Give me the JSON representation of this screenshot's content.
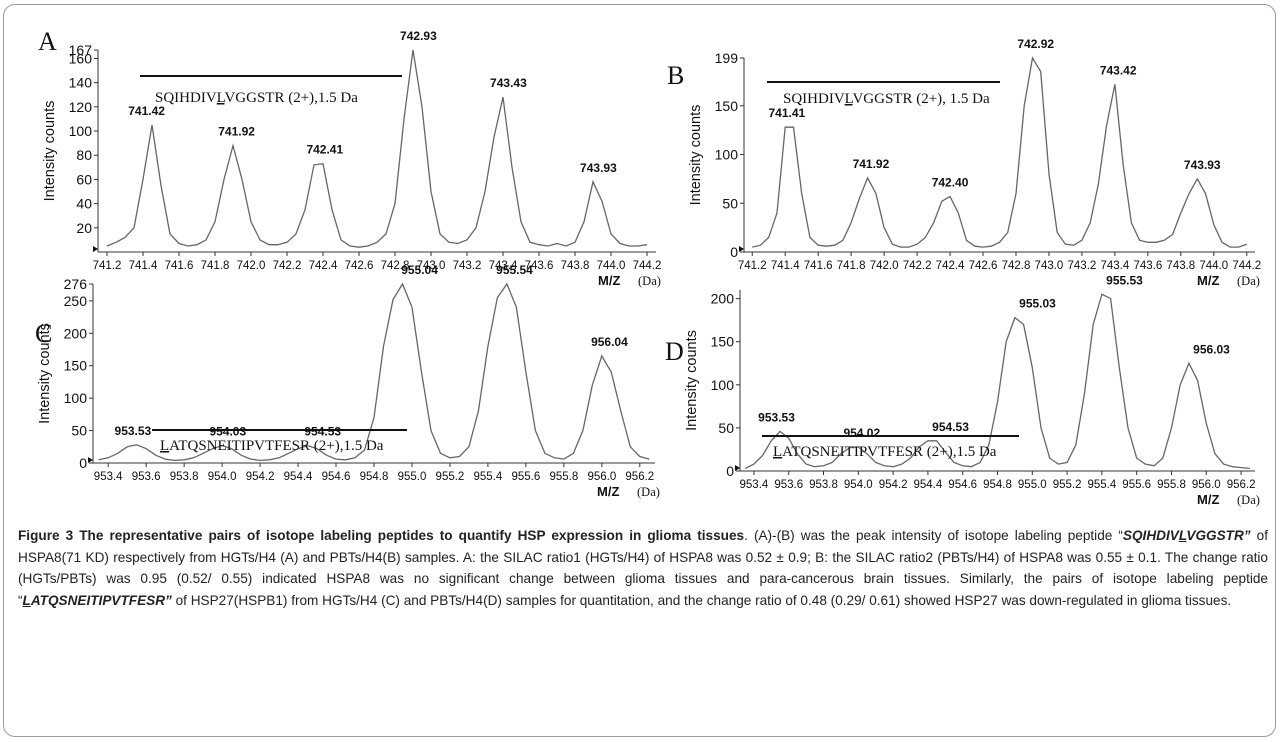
{
  "chart_data": [
    {
      "type": "line",
      "panel_label": "A",
      "x": [
        741.2,
        741.25,
        741.3,
        741.35,
        741.4,
        741.45,
        741.5,
        741.55,
        741.6,
        741.65,
        741.7,
        741.75,
        741.8,
        741.85,
        741.9,
        741.95,
        742.0,
        742.05,
        742.1,
        742.15,
        742.2,
        742.25,
        742.3,
        742.35,
        742.4,
        742.45,
        742.5,
        742.55,
        742.6,
        742.65,
        742.7,
        742.75,
        742.8,
        742.85,
        742.9,
        742.95,
        743.0,
        743.05,
        743.1,
        743.15,
        743.2,
        743.25,
        743.3,
        743.35,
        743.4,
        743.45,
        743.5,
        743.55,
        743.6,
        743.65,
        743.7,
        743.75,
        743.8,
        743.85,
        743.9,
        743.95,
        744.0,
        744.05,
        744.1,
        744.15,
        744.2
      ],
      "series": [
        {
          "values": [
            5,
            8,
            12,
            20,
            60,
            105,
            55,
            15,
            7,
            5,
            6,
            10,
            25,
            60,
            88,
            60,
            25,
            10,
            6,
            6,
            8,
            15,
            35,
            72,
            73,
            35,
            10,
            5,
            4,
            5,
            8,
            15,
            40,
            110,
            167,
            120,
            50,
            15,
            8,
            7,
            10,
            20,
            50,
            95,
            128,
            70,
            25,
            8,
            6,
            5,
            7,
            5,
            8,
            25,
            58,
            42,
            15,
            7,
            5,
            5,
            6
          ]
        }
      ],
      "peak_labels": [
        {
          "x": 741.42,
          "y": 105,
          "label": "741.42"
        },
        {
          "x": 741.92,
          "y": 88,
          "label": "741.92"
        },
        {
          "x": 742.41,
          "y": 73,
          "label": "742.41"
        },
        {
          "x": 742.93,
          "y": 167,
          "label": "742.93"
        },
        {
          "x": 743.43,
          "y": 128,
          "label": "743.43"
        },
        {
          "x": 743.93,
          "y": 58,
          "label": "743.93"
        }
      ],
      "annotation": "SQIHDIVLVGGSTR (2+),1.5 Da",
      "annotation_underline_char": "L",
      "xticks": [
        "741.2",
        "741.4",
        "741.6",
        "741.8",
        "742.0",
        "742.2",
        "742.4",
        "742.6",
        "742.8",
        "743.0",
        "743.2",
        "743.4",
        "743.6",
        "743.8",
        "744.0",
        "744.2"
      ],
      "yticks": [
        "20",
        "40",
        "60",
        "80",
        "100",
        "120",
        "140",
        "160",
        "167"
      ],
      "xlim": [
        741.15,
        744.25
      ],
      "ylim": [
        0,
        167
      ],
      "xlabel": "M/Z",
      "xlabel_unit": "(Da)",
      "ylabel": "Intensity counts"
    },
    {
      "type": "line",
      "panel_label": "B",
      "x": [
        741.2,
        741.25,
        741.3,
        741.35,
        741.4,
        741.45,
        741.5,
        741.55,
        741.6,
        741.65,
        741.7,
        741.75,
        741.8,
        741.85,
        741.9,
        741.95,
        742.0,
        742.05,
        742.1,
        742.15,
        742.2,
        742.25,
        742.3,
        742.35,
        742.4,
        742.45,
        742.5,
        742.55,
        742.6,
        742.65,
        742.7,
        742.75,
        742.8,
        742.85,
        742.9,
        742.95,
        743.0,
        743.05,
        743.1,
        743.15,
        743.2,
        743.25,
        743.3,
        743.35,
        743.4,
        743.45,
        743.5,
        743.55,
        743.6,
        743.65,
        743.7,
        743.75,
        743.8,
        743.85,
        743.9,
        743.95,
        744.0,
        744.05,
        744.1,
        744.15,
        744.2
      ],
      "series": [
        {
          "values": [
            5,
            7,
            15,
            40,
            128,
            128,
            60,
            15,
            7,
            6,
            7,
            12,
            30,
            55,
            76,
            60,
            25,
            8,
            5,
            5,
            8,
            15,
            30,
            52,
            57,
            40,
            12,
            6,
            5,
            6,
            10,
            20,
            60,
            150,
            199,
            185,
            80,
            20,
            8,
            7,
            12,
            30,
            70,
            130,
            172,
            90,
            30,
            12,
            10,
            10,
            12,
            18,
            40,
            60,
            75,
            60,
            28,
            10,
            5,
            5,
            8
          ]
        }
      ],
      "peak_labels": [
        {
          "x": 741.41,
          "y": 128,
          "label": "741.41"
        },
        {
          "x": 741.92,
          "y": 76,
          "label": "741.92"
        },
        {
          "x": 742.4,
          "y": 57,
          "label": "742.40"
        },
        {
          "x": 742.92,
          "y": 199,
          "label": "742.92"
        },
        {
          "x": 743.42,
          "y": 172,
          "label": "743.42"
        },
        {
          "x": 743.93,
          "y": 75,
          "label": "743.93"
        }
      ],
      "annotation": "SQIHDIVLVGGSTR (2+), 1.5 Da",
      "annotation_underline_char": "L",
      "xticks": [
        "741.2",
        "741.4",
        "741.6",
        "741.8",
        "742.0",
        "742.2",
        "742.4",
        "742.6",
        "742.8",
        "743.0",
        "743.2",
        "743.4",
        "743.6",
        "743.8",
        "744.0",
        "744.2"
      ],
      "yticks": [
        "0",
        "50",
        "100",
        "150",
        "199"
      ],
      "xlim": [
        741.15,
        744.25
      ],
      "ylim": [
        0,
        199
      ],
      "xlabel": "M/Z",
      "xlabel_unit": "(Da)",
      "ylabel": "Intensity counts"
    },
    {
      "type": "line",
      "panel_label": "C",
      "x": [
        953.35,
        953.4,
        953.45,
        953.5,
        953.55,
        953.6,
        953.65,
        953.7,
        953.75,
        953.8,
        953.85,
        953.9,
        953.95,
        954.0,
        954.05,
        954.1,
        954.15,
        954.2,
        954.25,
        954.3,
        954.35,
        954.4,
        954.45,
        954.5,
        954.55,
        954.6,
        954.65,
        954.7,
        954.75,
        954.8,
        954.85,
        954.9,
        954.95,
        955.0,
        955.05,
        955.1,
        955.15,
        955.2,
        955.25,
        955.3,
        955.35,
        955.4,
        955.45,
        955.5,
        955.55,
        955.6,
        955.65,
        955.7,
        955.75,
        955.8,
        955.85,
        955.9,
        955.95,
        956.0,
        956.05,
        956.1,
        956.15,
        956.2,
        956.25
      ],
      "series": [
        {
          "values": [
            5,
            8,
            15,
            25,
            28,
            22,
            12,
            6,
            4,
            5,
            8,
            15,
            22,
            27,
            22,
            12,
            6,
            4,
            5,
            8,
            15,
            22,
            27,
            22,
            12,
            6,
            5,
            8,
            20,
            70,
            180,
            252,
            276,
            240,
            140,
            50,
            15,
            8,
            10,
            25,
            80,
            180,
            255,
            276,
            240,
            140,
            50,
            15,
            8,
            6,
            15,
            50,
            120,
            165,
            140,
            80,
            25,
            10,
            6
          ]
        }
      ],
      "peak_labels": [
        {
          "x": 953.53,
          "y": 28,
          "label": "953.53"
        },
        {
          "x": 954.03,
          "y": 27,
          "label": "954.03"
        },
        {
          "x": 954.53,
          "y": 27,
          "label": "954.53"
        },
        {
          "x": 955.04,
          "y": 276,
          "label": "955.04"
        },
        {
          "x": 955.54,
          "y": 276,
          "label": "955.54"
        },
        {
          "x": 956.04,
          "y": 165,
          "label": "956.04"
        }
      ],
      "annotation": "LATQSNEITIPVTFESR (2+),1.5 Da",
      "annotation_underline_char": "L",
      "xticks": [
        "953.4",
        "953.6",
        "953.8",
        "954.0",
        "954.2",
        "954.4",
        "954.6",
        "954.8",
        "955.0",
        "955.2",
        "955.4",
        "955.6",
        "955.8",
        "956.0",
        "956.2"
      ],
      "yticks": [
        "0",
        "50",
        "100",
        "150",
        "200",
        "250",
        "276"
      ],
      "xlim": [
        953.32,
        956.28
      ],
      "ylim": [
        0,
        276
      ],
      "xlabel": "M/Z",
      "xlabel_unit": "(Da)",
      "ylabel": "Intensity counts"
    },
    {
      "type": "line",
      "panel_label": "D",
      "x": [
        953.35,
        953.4,
        953.45,
        953.5,
        953.55,
        953.6,
        953.65,
        953.7,
        953.75,
        953.8,
        953.85,
        953.9,
        953.95,
        954.0,
        954.05,
        954.1,
        954.15,
        954.2,
        954.25,
        954.3,
        954.35,
        954.4,
        954.45,
        954.5,
        954.55,
        954.6,
        954.65,
        954.7,
        954.75,
        954.8,
        954.85,
        954.9,
        954.95,
        955.0,
        955.05,
        955.1,
        955.15,
        955.2,
        955.25,
        955.3,
        955.35,
        955.4,
        955.45,
        955.5,
        955.55,
        955.6,
        955.65,
        955.7,
        955.75,
        955.8,
        955.85,
        955.9,
        955.95,
        956.0,
        956.05,
        956.1,
        956.15,
        956.2,
        956.25
      ],
      "series": [
        {
          "values": [
            3,
            8,
            18,
            35,
            46,
            38,
            20,
            8,
            5,
            6,
            10,
            20,
            27,
            28,
            20,
            10,
            6,
            5,
            8,
            15,
            28,
            35,
            35,
            22,
            10,
            6,
            5,
            10,
            30,
            80,
            150,
            178,
            170,
            120,
            50,
            15,
            8,
            10,
            30,
            90,
            170,
            205,
            200,
            120,
            50,
            15,
            8,
            6,
            15,
            50,
            100,
            125,
            105,
            55,
            20,
            8,
            5,
            4,
            3
          ]
        }
      ],
      "peak_labels": [
        {
          "x": 953.53,
          "y": 46,
          "label": "953.53"
        },
        {
          "x": 954.02,
          "y": 28,
          "label": "954.02"
        },
        {
          "x": 954.53,
          "y": 35,
          "label": "954.53"
        },
        {
          "x": 955.03,
          "y": 178,
          "label": "955.03"
        },
        {
          "x": 955.53,
          "y": 205,
          "label": "955.53"
        },
        {
          "x": 956.03,
          "y": 125,
          "label": "956.03"
        }
      ],
      "annotation": "LATQSNEITIPVTFESR (2+),1.5 Da",
      "annotation_underline_char": "L",
      "xticks": [
        "953.4",
        "953.6",
        "953.8",
        "954.0",
        "954.2",
        "954.4",
        "954.6",
        "954.8",
        "955.0",
        "955.2",
        "955.4",
        "955.6",
        "955.8",
        "956.0",
        "956.2"
      ],
      "yticks": [
        "0",
        "50",
        "100",
        "150",
        "200"
      ],
      "xlim": [
        953.32,
        956.28
      ],
      "ylim": [
        0,
        210
      ],
      "xlabel": "M/Z",
      "xlabel_unit": "(Da)",
      "ylabel": "Intensity counts"
    }
  ],
  "caption": {
    "title": "Figure 3 The representative pairs of isotope labeling peptides to quantify HSP expression in glioma tissues",
    "part1": ". (A)-(B) was the peak intensity of isotope labeling peptide “",
    "peptide1_before": "SQIHDIV",
    "peptide1_underlined": "L",
    "peptide1_after": "VGGSTR”",
    "part2": " of HSPA8(71 KD) respectively from HGTs/H4 (A) and PBTs/H4(B) samples. A: the SILAC ratio1 (HGTs/H4) of HSPA8 was 0.52 ± 0.9; B: the SILAC ratio2 (PBTs/H4) of HSPA8 was 0.55 ± 0.1. The change ratio (HGTs/PBTs) was 0.95 (0.52/ 0.55) indicated HSPA8 was no significant change between glioma tissues and para-cancerous brain tissues. Similarly, the pairs of isotope labeling peptide “",
    "peptide2_underlined": "L",
    "peptide2_after": "ATQSNEITIPVTFESR”",
    "part3": " of HSP27(HSPB1) from HGTs/H4 (C) and PBTs/H4(D) samples for quantitation, and the change ratio of 0.48 (0.29/ 0.61) showed HSP27 was down-regulated in glioma tissues."
  }
}
